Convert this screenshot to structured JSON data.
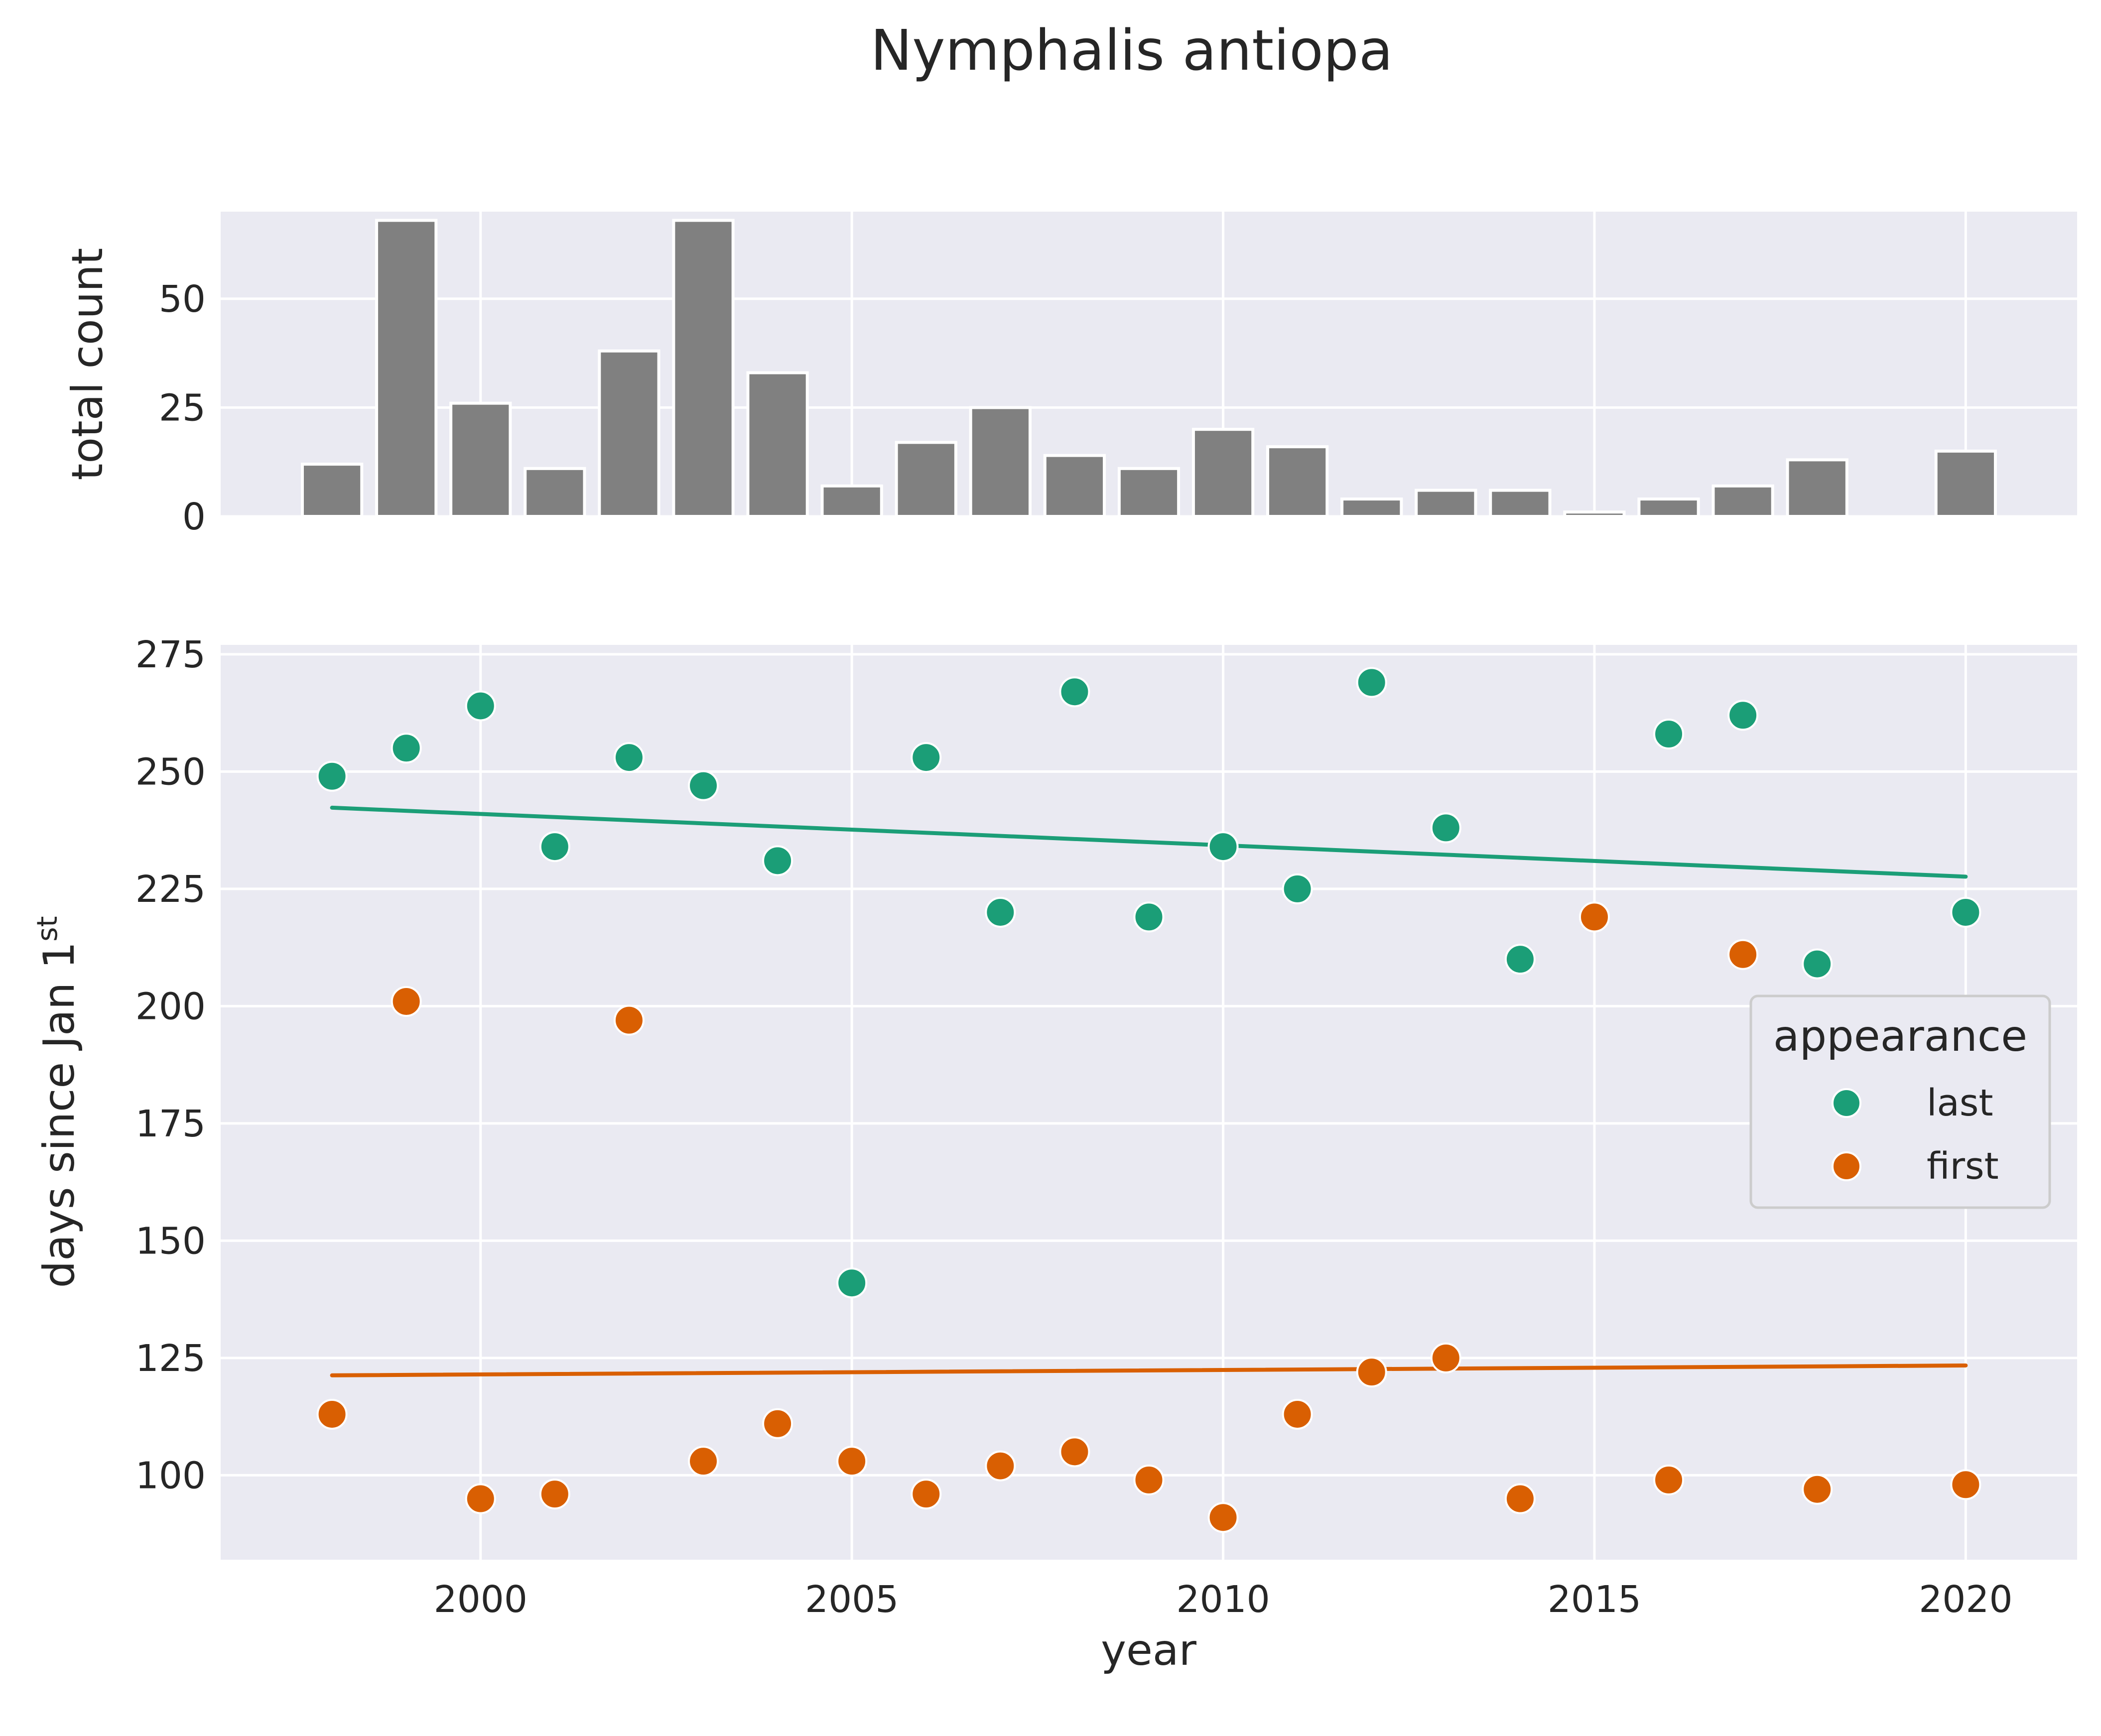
{
  "chart_data": [
    {
      "type": "bar",
      "title": "Nymphalis antiopa",
      "xlabel": "",
      "ylabel": "total count",
      "ylim": [
        0,
        70
      ],
      "yticks": [
        0,
        25,
        50
      ],
      "xlim": [
        1996.5,
        2021.5
      ],
      "grid": true,
      "background": "#eaeaf2",
      "bar_color": "#808080",
      "x": [
        1998,
        1999,
        2000,
        2001,
        2002,
        2003,
        2004,
        2005,
        2006,
        2007,
        2008,
        2009,
        2010,
        2011,
        2012,
        2013,
        2014,
        2015,
        2016,
        2017,
        2018,
        2020
      ],
      "values": [
        12,
        68,
        26,
        11,
        38,
        68,
        33,
        7,
        17,
        25,
        14,
        11,
        20,
        16,
        4,
        6,
        6,
        1,
        4,
        7,
        13,
        15
      ]
    },
    {
      "type": "scatter",
      "xlabel": "year",
      "ylabel_main": "days since Jan 1",
      "ylabel_sup": "st",
      "xlim": [
        1996.5,
        2021.5
      ],
      "ylim": [
        82,
        277
      ],
      "xticks": [
        2000,
        2005,
        2010,
        2015,
        2020
      ],
      "yticks": [
        100,
        125,
        150,
        175,
        200,
        225,
        250,
        275
      ],
      "grid": true,
      "background": "#eaeaf2",
      "legend": {
        "title": "appearance",
        "position": "right",
        "entries": [
          "last",
          "first"
        ]
      },
      "series": [
        {
          "name": "last",
          "color": "#1b9e77",
          "points": [
            [
              1998,
              249
            ],
            [
              1999,
              255
            ],
            [
              2000,
              264
            ],
            [
              2001,
              234
            ],
            [
              2002,
              253
            ],
            [
              2003,
              247
            ],
            [
              2004,
              231
            ],
            [
              2005,
              141
            ],
            [
              2006,
              253
            ],
            [
              2007,
              220
            ],
            [
              2008,
              267
            ],
            [
              2009,
              219
            ],
            [
              2010,
              234
            ],
            [
              2011,
              225
            ],
            [
              2012,
              269
            ],
            [
              2013,
              238
            ],
            [
              2014,
              210
            ],
            [
              2016,
              258
            ],
            [
              2017,
              262
            ],
            [
              2018,
              209
            ],
            [
              2020,
              220
            ]
          ],
          "trend": [
            [
              1998,
              242.3
            ],
            [
              2020,
              227.6
            ]
          ]
        },
        {
          "name": "first",
          "color": "#d95f02",
          "points": [
            [
              1998,
              113
            ],
            [
              1999,
              201
            ],
            [
              2000,
              95
            ],
            [
              2001,
              96
            ],
            [
              2002,
              197
            ],
            [
              2003,
              103
            ],
            [
              2004,
              111
            ],
            [
              2005,
              103
            ],
            [
              2006,
              96
            ],
            [
              2007,
              102
            ],
            [
              2008,
              105
            ],
            [
              2009,
              99
            ],
            [
              2010,
              91
            ],
            [
              2011,
              113
            ],
            [
              2012,
              122
            ],
            [
              2013,
              125
            ],
            [
              2014,
              95
            ],
            [
              2015,
              219
            ],
            [
              2016,
              99
            ],
            [
              2017,
              211
            ],
            [
              2018,
              97
            ],
            [
              2020,
              98
            ]
          ],
          "trend": [
            [
              1998,
              121.3
            ],
            [
              2020,
              123.4
            ]
          ]
        }
      ]
    }
  ]
}
